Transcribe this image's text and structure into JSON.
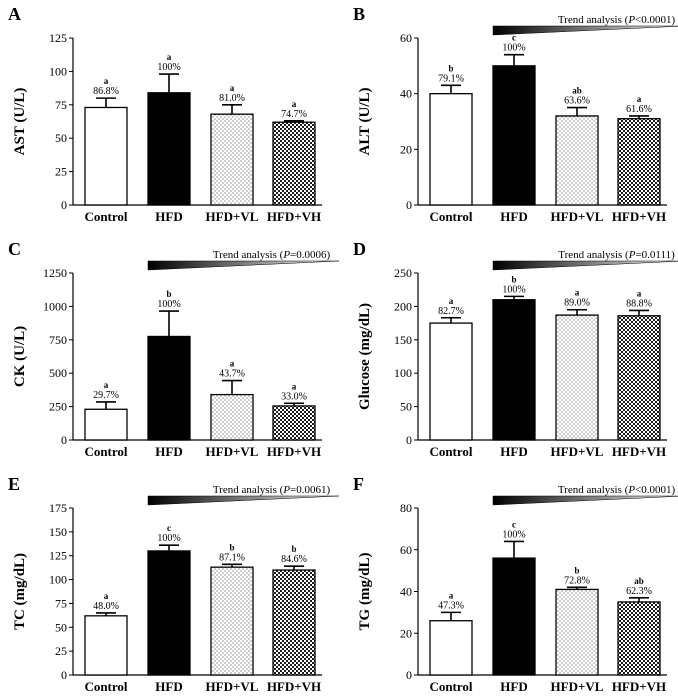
{
  "figure": {
    "panel_order": [
      "A",
      "B",
      "C",
      "D",
      "E",
      "F"
    ]
  },
  "colors": {
    "axis": "#000000",
    "bar_outline": "#000000",
    "control_fill": "#ffffff",
    "hfd_fill": "#000000",
    "trend_dark": "#000000",
    "trend_light": "#ffffff"
  },
  "chart_data": [
    {
      "panel": "A",
      "type": "bar",
      "ylabel": "AST (U/L)",
      "categories": [
        "Control",
        "HFD",
        "HFD+VL",
        "HFD+VH"
      ],
      "fills": [
        "white",
        "black",
        "dots",
        "checker"
      ],
      "values": [
        73,
        84,
        68,
        62
      ],
      "errors": [
        7,
        14,
        7,
        1
      ],
      "letters": [
        "a",
        "a",
        "a",
        "a"
      ],
      "percents": [
        "86.8%",
        "100%",
        "81.0%",
        "74.7%"
      ],
      "ylim": [
        0,
        125
      ],
      "yticks": [
        0,
        25,
        50,
        75,
        100,
        125
      ],
      "trend": null
    },
    {
      "panel": "B",
      "type": "bar",
      "ylabel": "ALT (U/L)",
      "categories": [
        "Control",
        "HFD",
        "HFD+VL",
        "HFD+VH"
      ],
      "fills": [
        "white",
        "black",
        "dots",
        "checker"
      ],
      "values": [
        40,
        50,
        32,
        31
      ],
      "errors": [
        3,
        4,
        3,
        1
      ],
      "letters": [
        "b",
        "c",
        "ab",
        "a"
      ],
      "percents": [
        "79.1%",
        "100%",
        "63.6%",
        "61.6%"
      ],
      "ylim": [
        0,
        60
      ],
      "yticks": [
        0,
        20,
        40,
        60
      ],
      "trend": {
        "prefix": "Trend analysis (",
        "pvar": "P",
        "value": "<0.0001)"
      }
    },
    {
      "panel": "C",
      "type": "bar",
      "ylabel": "CK (U/L)",
      "categories": [
        "Control",
        "HFD",
        "HFD+VL",
        "HFD+VH"
      ],
      "fills": [
        "white",
        "black",
        "dots",
        "checker"
      ],
      "values": [
        230,
        775,
        340,
        255
      ],
      "errors": [
        55,
        190,
        105,
        20
      ],
      "letters": [
        "a",
        "b",
        "a",
        "a"
      ],
      "percents": [
        "29.7%",
        "100%",
        "43.7%",
        "33.0%"
      ],
      "ylim": [
        0,
        1250
      ],
      "yticks": [
        0,
        250,
        500,
        750,
        1000,
        1250
      ],
      "trend": {
        "prefix": "Trend analysis (",
        "pvar": "P",
        "value": "=0.0006)"
      }
    },
    {
      "panel": "D",
      "type": "bar",
      "ylabel": "Glucose (mg/dL)",
      "categories": [
        "Control",
        "HFD",
        "HFD+VL",
        "HFD+VH"
      ],
      "fills": [
        "white",
        "black",
        "dots",
        "checker"
      ],
      "values": [
        175,
        210,
        187,
        186
      ],
      "errors": [
        8,
        5,
        8,
        8
      ],
      "letters": [
        "a",
        "b",
        "a",
        "a"
      ],
      "percents": [
        "82.7%",
        "100%",
        "89.0%",
        "88.8%"
      ],
      "ylim": [
        0,
        250
      ],
      "yticks": [
        0,
        50,
        100,
        150,
        200,
        250
      ],
      "trend": {
        "prefix": "Trend analysis (",
        "pvar": "P",
        "value": "=0.0111)"
      }
    },
    {
      "panel": "E",
      "type": "bar",
      "ylabel": "TC (mg/dL)",
      "categories": [
        "Control",
        "HFD",
        "HFD+VL",
        "HFD+VH"
      ],
      "fills": [
        "white",
        "black",
        "dots",
        "checker"
      ],
      "values": [
        62,
        130,
        113,
        110
      ],
      "errors": [
        3,
        6,
        3,
        4
      ],
      "letters": [
        "a",
        "c",
        "b",
        "b"
      ],
      "percents": [
        "48.0%",
        "100%",
        "87.1%",
        "84.6%"
      ],
      "ylim": [
        0,
        175
      ],
      "yticks": [
        0,
        25,
        50,
        75,
        100,
        125,
        150,
        175
      ],
      "trend": {
        "prefix": "Trend analysis (",
        "pvar": "P",
        "value": "=0.0061)"
      }
    },
    {
      "panel": "F",
      "type": "bar",
      "ylabel": "TG (mg/dL)",
      "categories": [
        "Control",
        "HFD",
        "HFD+VL",
        "HFD+VH"
      ],
      "fills": [
        "white",
        "black",
        "dots",
        "checker"
      ],
      "values": [
        26,
        56,
        41,
        35
      ],
      "errors": [
        4,
        8,
        1,
        2
      ],
      "letters": [
        "a",
        "c",
        "b",
        "ab"
      ],
      "percents": [
        "47.3%",
        "100%",
        "72.8%",
        "62.3%"
      ],
      "ylim": [
        0,
        80
      ],
      "yticks": [
        0,
        20,
        40,
        60,
        80
      ],
      "trend": {
        "prefix": "Trend analysis (",
        "pvar": "P",
        "value": "<0.0001)"
      }
    }
  ]
}
